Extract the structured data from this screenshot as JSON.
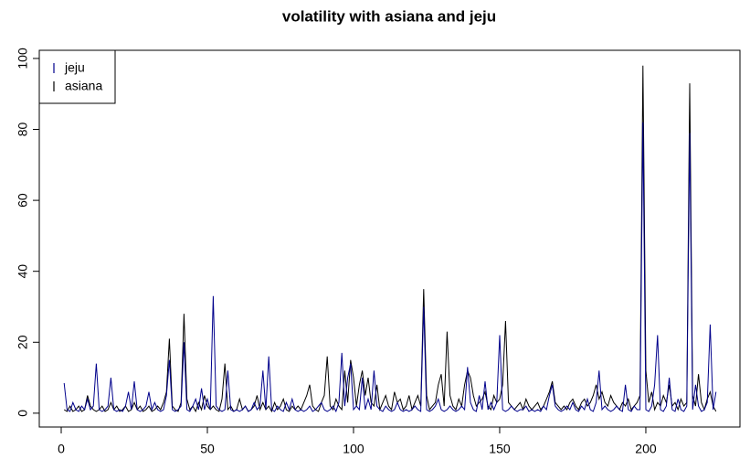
{
  "chart_data": {
    "type": "line",
    "title": "volatility with asiana and jeju",
    "x": [
      1,
      2,
      3,
      4,
      5,
      6,
      7,
      8,
      9,
      10,
      11,
      12,
      13,
      14,
      15,
      16,
      17,
      18,
      19,
      20,
      21,
      22,
      23,
      24,
      25,
      26,
      27,
      28,
      29,
      30,
      31,
      32,
      33,
      34,
      35,
      36,
      37,
      38,
      39,
      40,
      41,
      42,
      43,
      44,
      45,
      46,
      47,
      48,
      49,
      50,
      51,
      52,
      53,
      54,
      55,
      56,
      57,
      58,
      59,
      60,
      61,
      62,
      63,
      64,
      65,
      66,
      67,
      68,
      69,
      70,
      71,
      72,
      73,
      74,
      75,
      76,
      77,
      78,
      79,
      80,
      81,
      82,
      83,
      84,
      85,
      86,
      87,
      88,
      89,
      90,
      91,
      92,
      93,
      94,
      95,
      96,
      97,
      98,
      99,
      100,
      101,
      102,
      103,
      104,
      105,
      106,
      107,
      108,
      109,
      110,
      111,
      112,
      113,
      114,
      115,
      116,
      117,
      118,
      119,
      120,
      121,
      122,
      123,
      124,
      125,
      126,
      127,
      128,
      129,
      130,
      131,
      132,
      133,
      134,
      135,
      136,
      137,
      138,
      139,
      140,
      141,
      142,
      143,
      144,
      145,
      146,
      147,
      148,
      149,
      150,
      151,
      152,
      153,
      154,
      155,
      156,
      157,
      158,
      159,
      160,
      161,
      162,
      163,
      164,
      165,
      166,
      167,
      168,
      169,
      170,
      171,
      172,
      173,
      174,
      175,
      176,
      177,
      178,
      179,
      180,
      181,
      182,
      183,
      184,
      185,
      186,
      187,
      188,
      189,
      190,
      191,
      192,
      193,
      194,
      195,
      196,
      197,
      198,
      199,
      200,
      201,
      202,
      203,
      204,
      205,
      206,
      207,
      208,
      209,
      210,
      211,
      212,
      213,
      214,
      215,
      216,
      217,
      218,
      219,
      220,
      221,
      222,
      223,
      224
    ],
    "series": [
      {
        "name": "jeju",
        "color": "#00008b",
        "values": [
          8.5,
          1,
          0.5,
          3,
          1,
          0.5,
          2,
          1,
          4,
          1,
          2,
          14,
          1,
          0.5,
          1,
          2,
          10,
          1,
          0.5,
          1,
          0.5,
          2,
          6,
          1,
          9,
          1,
          0.5,
          1,
          2,
          6,
          1,
          3,
          1,
          0.5,
          1,
          5,
          15,
          1,
          0.5,
          1,
          2,
          20,
          1,
          0.5,
          2,
          4,
          1,
          7,
          1,
          4,
          1,
          33,
          2,
          1,
          0.5,
          1,
          12,
          1,
          0.5,
          1,
          0.5,
          1,
          2,
          0.5,
          1,
          3,
          1,
          2,
          12,
          1,
          16,
          1,
          0.5,
          2,
          1,
          0.5,
          3,
          1,
          4,
          1,
          0.5,
          1,
          0.5,
          1,
          2,
          0.5,
          1,
          2,
          3,
          1,
          0.5,
          1,
          2,
          0.5,
          3,
          17,
          2,
          10,
          14,
          1,
          2,
          1,
          10,
          1,
          4,
          1,
          12,
          2,
          1,
          0.5,
          2,
          1,
          0.5,
          1,
          3,
          1,
          0.5,
          1,
          0.5,
          1,
          2,
          1,
          0.5,
          30,
          1,
          0.5,
          1,
          2,
          4,
          1,
          0.5,
          1,
          2,
          1,
          0.5,
          1,
          2,
          1,
          13,
          3,
          1,
          0.5,
          5,
          1,
          9,
          1,
          3,
          1,
          3,
          22,
          1,
          0.5,
          1,
          2,
          1,
          0.5,
          1,
          1,
          2,
          0.5,
          1,
          0.5,
          1,
          0.5,
          2,
          1,
          5,
          8,
          2,
          1,
          0.5,
          1,
          2,
          1,
          3,
          1,
          0.5,
          2,
          1,
          4,
          1,
          0.5,
          3,
          12,
          1,
          2,
          1,
          0.5,
          1,
          2,
          1,
          0.5,
          8,
          1,
          0.5,
          2,
          1,
          1,
          82,
          1,
          0.5,
          2,
          8,
          22,
          1,
          0.5,
          2,
          10,
          1,
          0.5,
          4,
          1,
          0.5,
          2,
          79,
          1,
          8,
          2,
          0.5,
          1,
          3,
          25,
          1,
          6
        ]
      },
      {
        "name": "asiana",
        "color": "#000000",
        "values": [
          1,
          0.5,
          2,
          0.5,
          1,
          2,
          0.5,
          1,
          5,
          2,
          1,
          0.5,
          1,
          2,
          0.5,
          1,
          3,
          1,
          2,
          0.5,
          1,
          2,
          0.5,
          1,
          3,
          1,
          2,
          0.5,
          1,
          2,
          0.5,
          1,
          2,
          1,
          3,
          6,
          21,
          2,
          1,
          0.5,
          3,
          28,
          4,
          1,
          2,
          0.5,
          3,
          1,
          5,
          2,
          1,
          2,
          1,
          0.5,
          4,
          14,
          1,
          2,
          0.5,
          1,
          4,
          1,
          2,
          0.5,
          1,
          2,
          5,
          1,
          3,
          1,
          2,
          0.5,
          3,
          1,
          2,
          4,
          1,
          0.5,
          2,
          1,
          2,
          1,
          3,
          5,
          8,
          2,
          1,
          0.5,
          3,
          5,
          16,
          2,
          1,
          4,
          2,
          1,
          12,
          3,
          15,
          10,
          2,
          8,
          12,
          5,
          10,
          3,
          2,
          8,
          1,
          3,
          5,
          2,
          1,
          6,
          3,
          4,
          1,
          2,
          5,
          1,
          3,
          5,
          2,
          35,
          5,
          1,
          2,
          3,
          8,
          11,
          2,
          23,
          5,
          2,
          1,
          4,
          2,
          8,
          12,
          10,
          5,
          2,
          3,
          4,
          6,
          2,
          1,
          5,
          3,
          4,
          8,
          26,
          3,
          2,
          1,
          2,
          3,
          1,
          4,
          2,
          1,
          2,
          3,
          1,
          2,
          4,
          6,
          9,
          3,
          2,
          1,
          2,
          1,
          3,
          4,
          2,
          1,
          3,
          4,
          2,
          3,
          5,
          8,
          4,
          6,
          3,
          2,
          5,
          3,
          2,
          1,
          3,
          2,
          4,
          1,
          2,
          3,
          5,
          98,
          12,
          3,
          6,
          1,
          3,
          2,
          5,
          3,
          8,
          2,
          3,
          1,
          4,
          2,
          3,
          93,
          5,
          2,
          11,
          3,
          1,
          4,
          6,
          2,
          0.5
        ]
      }
    ],
    "xlim": [
      -7.5,
      232.2
    ],
    "ylim": [
      -3.9,
      102.3
    ],
    "xticks": [
      0,
      50,
      100,
      150,
      200
    ],
    "yticks": [
      0,
      20,
      40,
      60,
      80,
      100
    ],
    "legend": "topleft"
  }
}
